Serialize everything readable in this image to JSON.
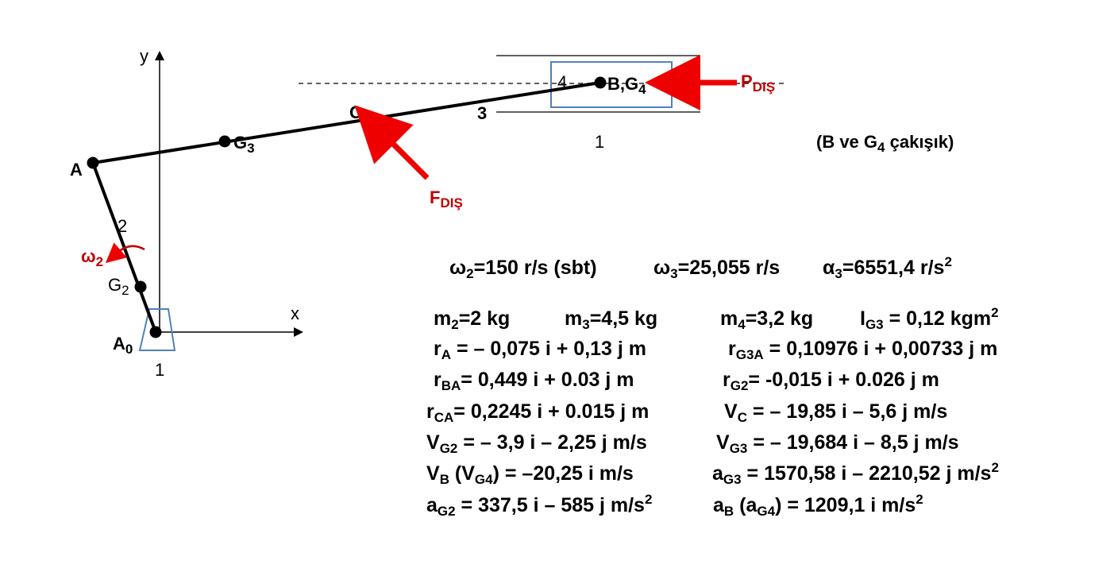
{
  "labels": {
    "y_axis": "y",
    "x_axis": "x",
    "A": "A",
    "A0": "A",
    "A0_sub": "0",
    "G2": "G",
    "G2_sub": "2",
    "G3": "G",
    "G3_sub": "3",
    "C": "C",
    "B": "B,G",
    "B_sub": "4",
    "link2": "2",
    "link3": "3",
    "link4": "4",
    "ground_left": "1",
    "ground_right": "1",
    "omega2": "ω",
    "omega2_sub": "2",
    "F_dis": "F",
    "F_dis_sub": "DIŞ",
    "P_dis": "P",
    "P_dis_sub": "DIŞ",
    "note": "(B ve G",
    "note_sub": "4",
    "note_end": " çakışık)"
  },
  "colors": {
    "force": "#ee0000",
    "ground": "#4f81bd",
    "link": "#000000"
  },
  "equations": {
    "w2_a": "ω",
    "w2_s": "2",
    "w2_b": "=150 r/s (sbt)",
    "w3_a": "ω",
    "w3_s": "3",
    "w3_b": "=25,055 r/s",
    "a3_a": "α",
    "a3_s": "3",
    "a3_b": "=6551,4 r/s",
    "a3_p": "2",
    "m2_a": "m",
    "m2_s": "2",
    "m2_b": "=2 kg",
    "m3_a": "m",
    "m3_s": "3",
    "m3_b": "=4,5 kg",
    "m4_a": "m",
    "m4_s": "4",
    "m4_b": "=3,2 kg",
    "ig3_a": "I",
    "ig3_s": "G3",
    "ig3_b": " = 0,12 kgm",
    "ig3_p": "2",
    "ra_a": "r",
    "ra_s": "A",
    "ra_b": " = – 0,075 i + 0,13 j  m",
    "rg3a_a": "r",
    "rg3a_s": "G3A",
    "rg3a_b": " = 0,10976 i + 0,00733 j  m",
    "rba_a": "r",
    "rba_s": "BA",
    "rba_b": "= 0,449 i + 0.03 j  m",
    "rg2_a": "r",
    "rg2_s": "G2",
    "rg2_b": "= -0,015 i + 0.026 j  m",
    "rca_a": "r",
    "rca_s": "CA",
    "rca_b": "= 0,2245 i + 0.015 j  m",
    "vc_a": "V",
    "vc_s": "C",
    "vc_b": " = – 19,85 i – 5,6 j  m/s",
    "vg2_a": "V",
    "vg2_s": "G2",
    "vg2_b": " = – 3,9 i – 2,25 j  m/s",
    "vg3_a": "V",
    "vg3_s": "G3",
    "vg3_b": " = – 19,684 i – 8,5 j  m/s",
    "vb_a": "V",
    "vb_s": "B",
    "vb_b": " (V",
    "vb_s2": "G4",
    "vb_c": ") = –20,25 i  m/s",
    "ag3_a": "a",
    "ag3_s": "G3",
    "ag3_b": " = 1570,58 i – 2210,52 j  m/s",
    "ag3_p": "2",
    "ag2_a": "a",
    "ag2_s": "G2",
    "ag2_b": " = 337,5 i – 585 j  m/s",
    "ag2_p": "2",
    "ab_a": "a",
    "ab_s": "B",
    "ab_b": " (a",
    "ab_s2": "G4",
    "ab_c": ") = 1209,1 i   m/s",
    "ab_p": "2"
  }
}
